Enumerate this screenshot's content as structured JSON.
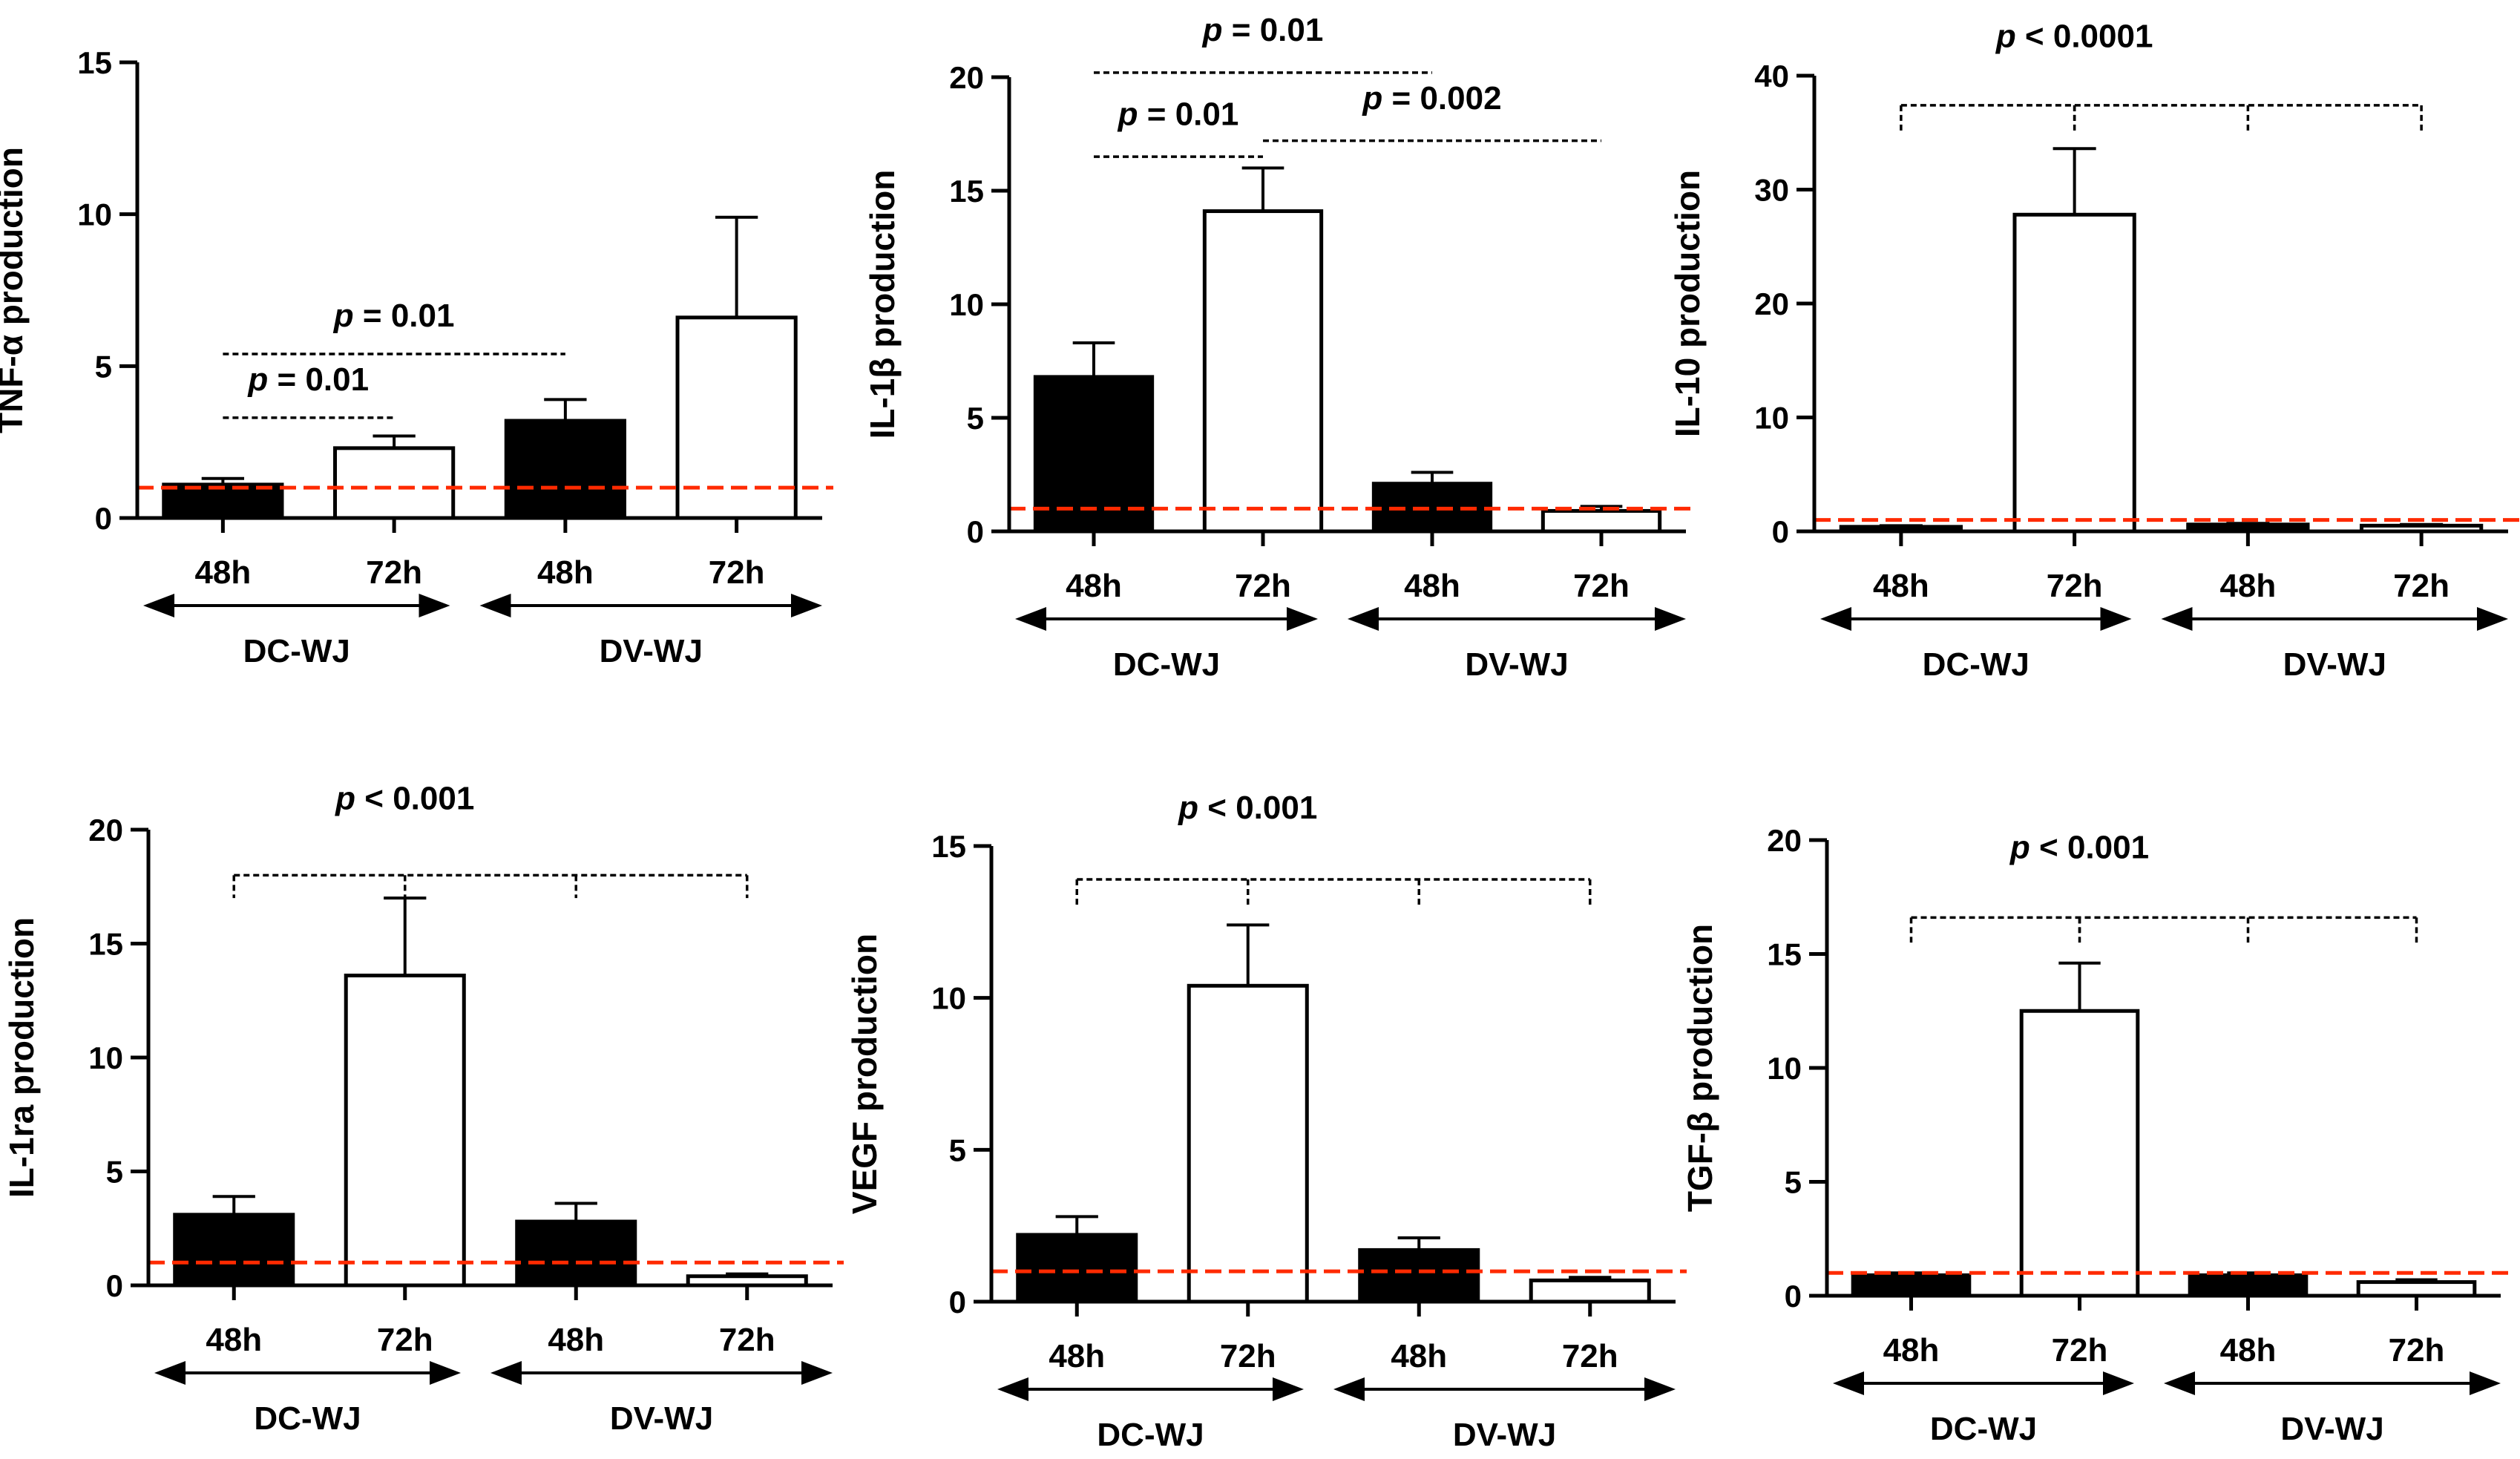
{
  "figure": {
    "colors": {
      "bar_48h": "#000000",
      "bar_72h": "#ffffff",
      "axis": "#000000",
      "reference_line": "#ff2a00"
    },
    "reference_line_value": 1
  },
  "chart_data": [
    {
      "type": "bar",
      "ylabel": "TNF-α production",
      "ylim": [
        0,
        15
      ],
      "yticks": [
        0,
        5,
        10,
        15
      ],
      "categories": [
        "48h",
        "72h",
        "48h",
        "72h"
      ],
      "groups": [
        {
          "label": "DC-WJ"
        },
        {
          "label": "DV-WJ"
        }
      ],
      "values": [
        1.1,
        2.3,
        3.2,
        6.6
      ],
      "errors": [
        0.2,
        0.4,
        0.7,
        3.3
      ],
      "reference_line": 1,
      "annotations": [
        {
          "text": "p = 0.01",
          "p": "p",
          "rest": " = 0.01",
          "type": "line",
          "from": 0,
          "to": 2,
          "y": 5.4,
          "textY": 6.3
        },
        {
          "text": "p = 0.01",
          "p": "p",
          "rest": " = 0.01",
          "type": "line",
          "from": 0,
          "to": 1,
          "y": 3.3,
          "textY": 4.2
        }
      ]
    },
    {
      "type": "bar",
      "ylabel": "IL-1β production",
      "ylim": [
        0,
        20
      ],
      "yticks": [
        0,
        5,
        10,
        15,
        20
      ],
      "categories": [
        "48h",
        "72h",
        "48h",
        "72h"
      ],
      "groups": [
        {
          "label": "DC-WJ"
        },
        {
          "label": "DV-WJ"
        }
      ],
      "values": [
        6.8,
        14.1,
        2.1,
        0.9
      ],
      "errors": [
        1.5,
        1.9,
        0.5,
        0.2
      ],
      "reference_line": 1,
      "annotations": [
        {
          "text": "p = 0.01",
          "p": "p",
          "rest": " = 0.01",
          "type": "line",
          "from": 0,
          "to": 2,
          "y": 20.2,
          "textY": 21.6
        },
        {
          "text": "p = 0.01",
          "p": "p",
          "rest": " = 0.01",
          "type": "line",
          "from": 0,
          "to": 1,
          "y": 16.5,
          "textY": 17.9
        },
        {
          "text": "p = 0.002",
          "p": "p",
          "rest": " = 0.002",
          "type": "line",
          "from": 1,
          "to": 3,
          "y": 17.2,
          "textY": 18.6
        }
      ]
    },
    {
      "type": "bar",
      "ylabel": "IL-10 production",
      "ylim": [
        0,
        40
      ],
      "yticks": [
        0,
        10,
        20,
        30,
        40
      ],
      "categories": [
        "48h",
        "72h",
        "48h",
        "72h"
      ],
      "groups": [
        {
          "label": "DC-WJ"
        },
        {
          "label": "DV-WJ"
        }
      ],
      "values": [
        0.4,
        27.8,
        0.6,
        0.5
      ],
      "errors": [
        0.1,
        5.8,
        0.1,
        0.1
      ],
      "reference_line": 1,
      "annotations": [
        {
          "text": "p < 0.0001",
          "p": "p",
          "rest": " < 0.0001",
          "type": "bracket",
          "center": 1,
          "y": 37.4,
          "drop": 2.3,
          "textY": 42.5
        }
      ]
    },
    {
      "type": "bar",
      "ylabel": "IL-1ra production",
      "ylim": [
        0,
        20
      ],
      "yticks": [
        0,
        5,
        10,
        15,
        20
      ],
      "categories": [
        "48h",
        "72h",
        "48h",
        "72h"
      ],
      "groups": [
        {
          "label": "DC-WJ"
        },
        {
          "label": "DV-WJ"
        }
      ],
      "values": [
        3.1,
        13.6,
        2.8,
        0.4
      ],
      "errors": [
        0.8,
        3.4,
        0.8,
        0.1
      ],
      "reference_line": 1,
      "annotations": [
        {
          "text": "p < 0.001",
          "p": "p",
          "rest": " < 0.001",
          "type": "bracket",
          "center": 1,
          "y": 18.0,
          "drop": 1.0,
          "textY": 20.9
        }
      ]
    },
    {
      "type": "bar",
      "ylabel": "VEGF production",
      "ylim": [
        0,
        15
      ],
      "yticks": [
        0,
        5,
        10,
        15
      ],
      "categories": [
        "48h",
        "72h",
        "48h",
        "72h"
      ],
      "groups": [
        {
          "label": "DC-WJ"
        },
        {
          "label": "DV-WJ"
        }
      ],
      "values": [
        2.2,
        10.4,
        1.7,
        0.7
      ],
      "errors": [
        0.6,
        2.0,
        0.4,
        0.1
      ],
      "reference_line": 1,
      "annotations": [
        {
          "text": "p < 0.001",
          "p": "p",
          "rest": " < 0.001",
          "type": "bracket",
          "center": 1,
          "y": 13.9,
          "drop": 0.9,
          "textY": 15.9
        }
      ]
    },
    {
      "type": "bar",
      "ylabel": "TGF-β production",
      "ylim": [
        0,
        20
      ],
      "yticks": [
        0,
        5,
        10,
        15,
        20
      ],
      "categories": [
        "48h",
        "72h",
        "48h",
        "72h"
      ],
      "groups": [
        {
          "label": "DC-WJ"
        },
        {
          "label": "DV-WJ"
        }
      ],
      "values": [
        0.9,
        12.5,
        0.9,
        0.6
      ],
      "errors": [
        0.1,
        2.1,
        0.1,
        0.1
      ],
      "reference_line": 1,
      "annotations": [
        {
          "text": "p < 0.001",
          "p": "p",
          "rest": " < 0.001",
          "type": "bracket",
          "center": 1,
          "y": 16.6,
          "drop": 1.1,
          "textY": 19.2
        }
      ]
    }
  ]
}
